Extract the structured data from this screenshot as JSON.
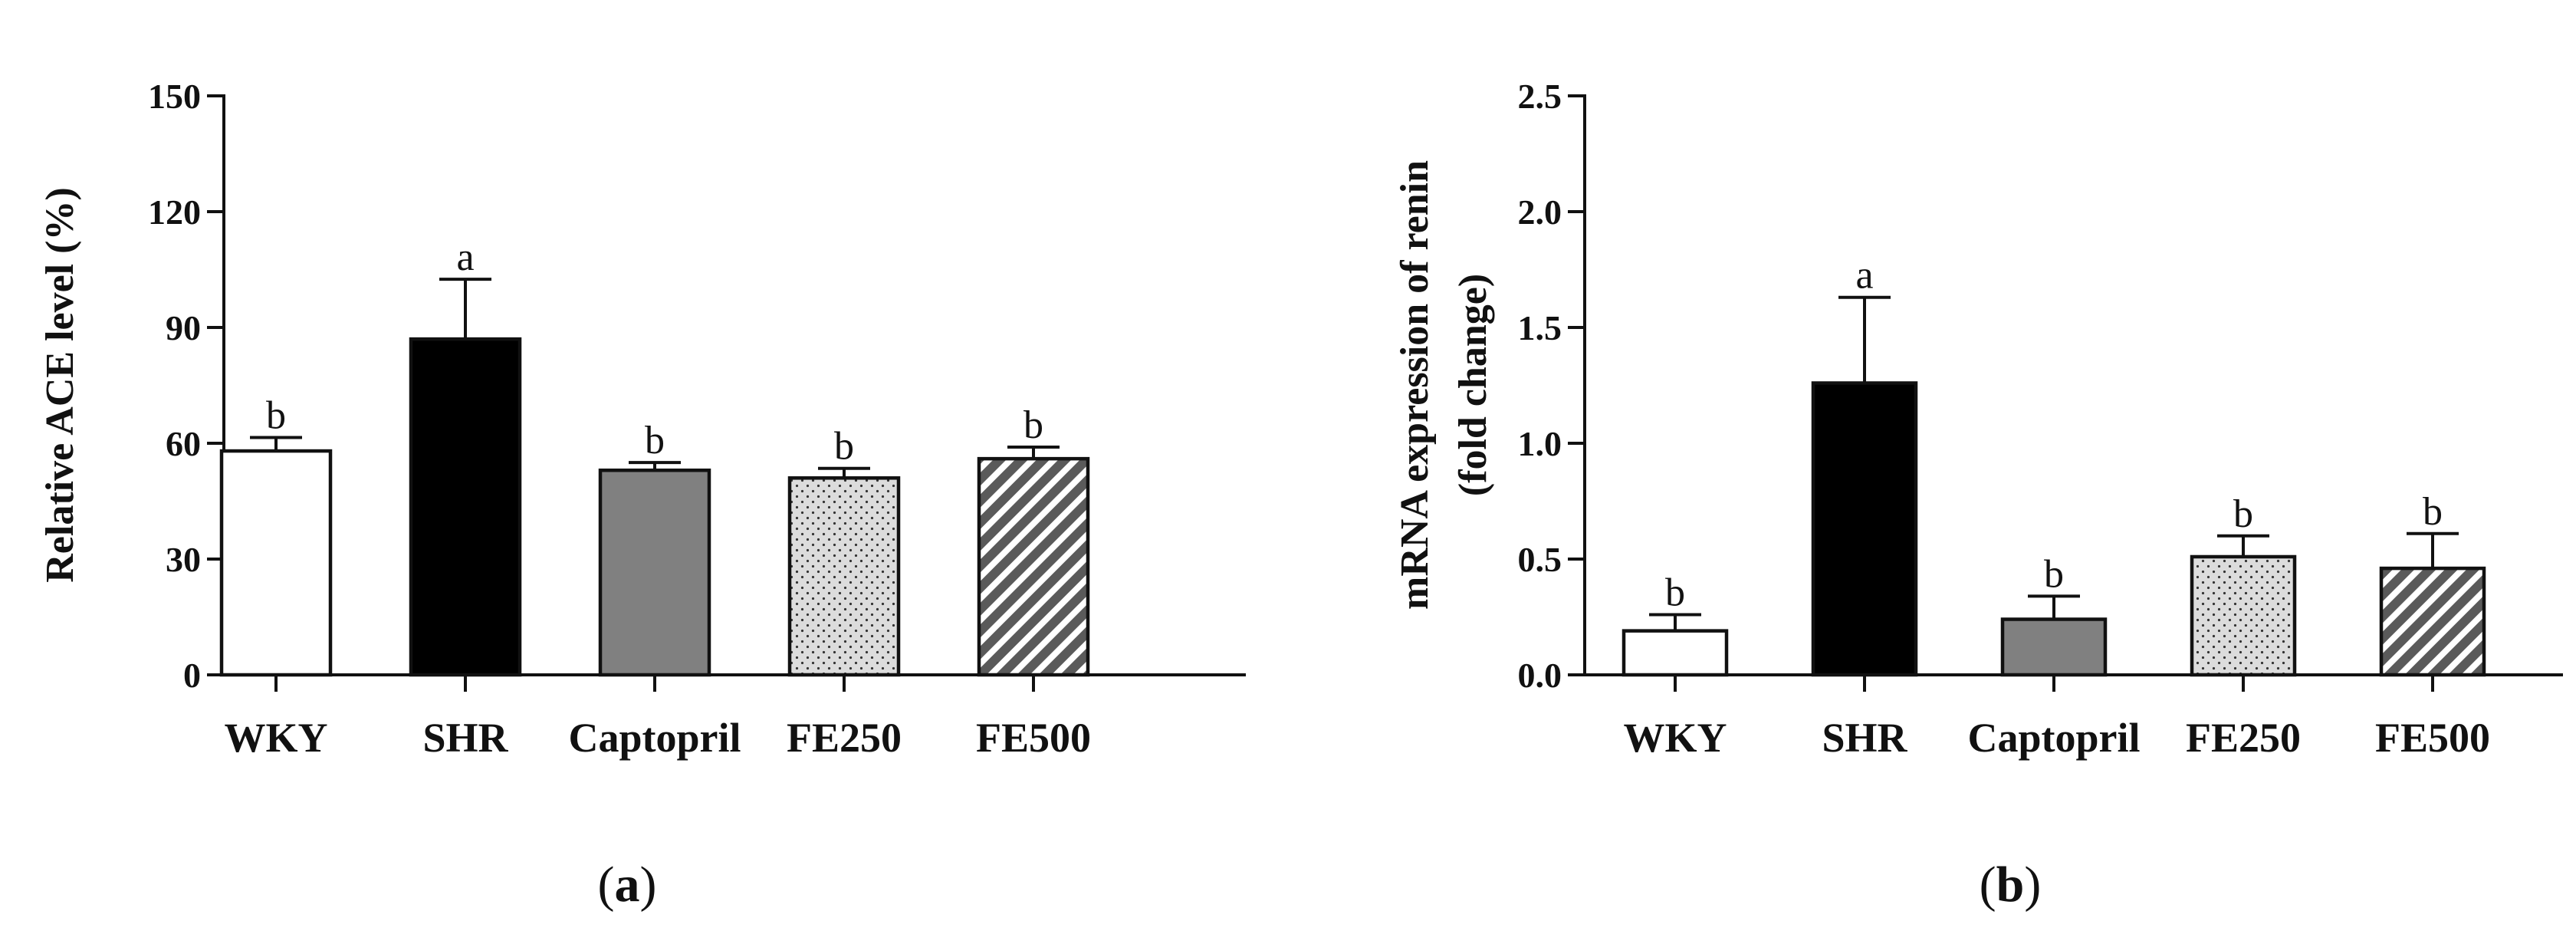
{
  "chart_data": [
    {
      "panel": "a",
      "type": "bar",
      "ylabel": "Relative ACE level (%)",
      "ylim": [
        0,
        150
      ],
      "yticks": [
        "0",
        "30",
        "60",
        "90",
        "120",
        "150"
      ],
      "categories": [
        "WKY",
        "SHR",
        "Captopril",
        "FE250",
        "FE500"
      ],
      "values": [
        58,
        87,
        53,
        51,
        56
      ],
      "errors": [
        3.5,
        15.5,
        2,
        2.5,
        3
      ],
      "letters": [
        "b",
        "a",
        "b",
        "b",
        "b"
      ],
      "fills": [
        "white",
        "black",
        "gray",
        "dots",
        "stripes"
      ],
      "colors": {
        "black": "#000000",
        "gray": "#808080",
        "white": "#ffffff"
      }
    },
    {
      "panel": "b",
      "type": "bar",
      "ylabel": "mRNA expression of renin",
      "ylabel2": "(fold change)",
      "ylim": [
        0,
        2.5
      ],
      "yticks": [
        "0.0",
        "0.5",
        "1.0",
        "1.5",
        "2.0",
        "2.5"
      ],
      "categories": [
        "WKY",
        "SHR",
        "Captopril",
        "FE250",
        "FE500"
      ],
      "values": [
        0.19,
        1.26,
        0.24,
        0.51,
        0.46
      ],
      "errors": [
        0.07,
        0.37,
        0.1,
        0.09,
        0.15
      ],
      "letters": [
        "b",
        "a",
        "b",
        "b",
        "b"
      ],
      "fills": [
        "white",
        "black",
        "gray",
        "dots",
        "stripes"
      ],
      "colors": {
        "black": "#000000",
        "gray": "#808080",
        "white": "#ffffff"
      }
    }
  ],
  "panel_labels": {
    "a": "a",
    "b": "b"
  }
}
